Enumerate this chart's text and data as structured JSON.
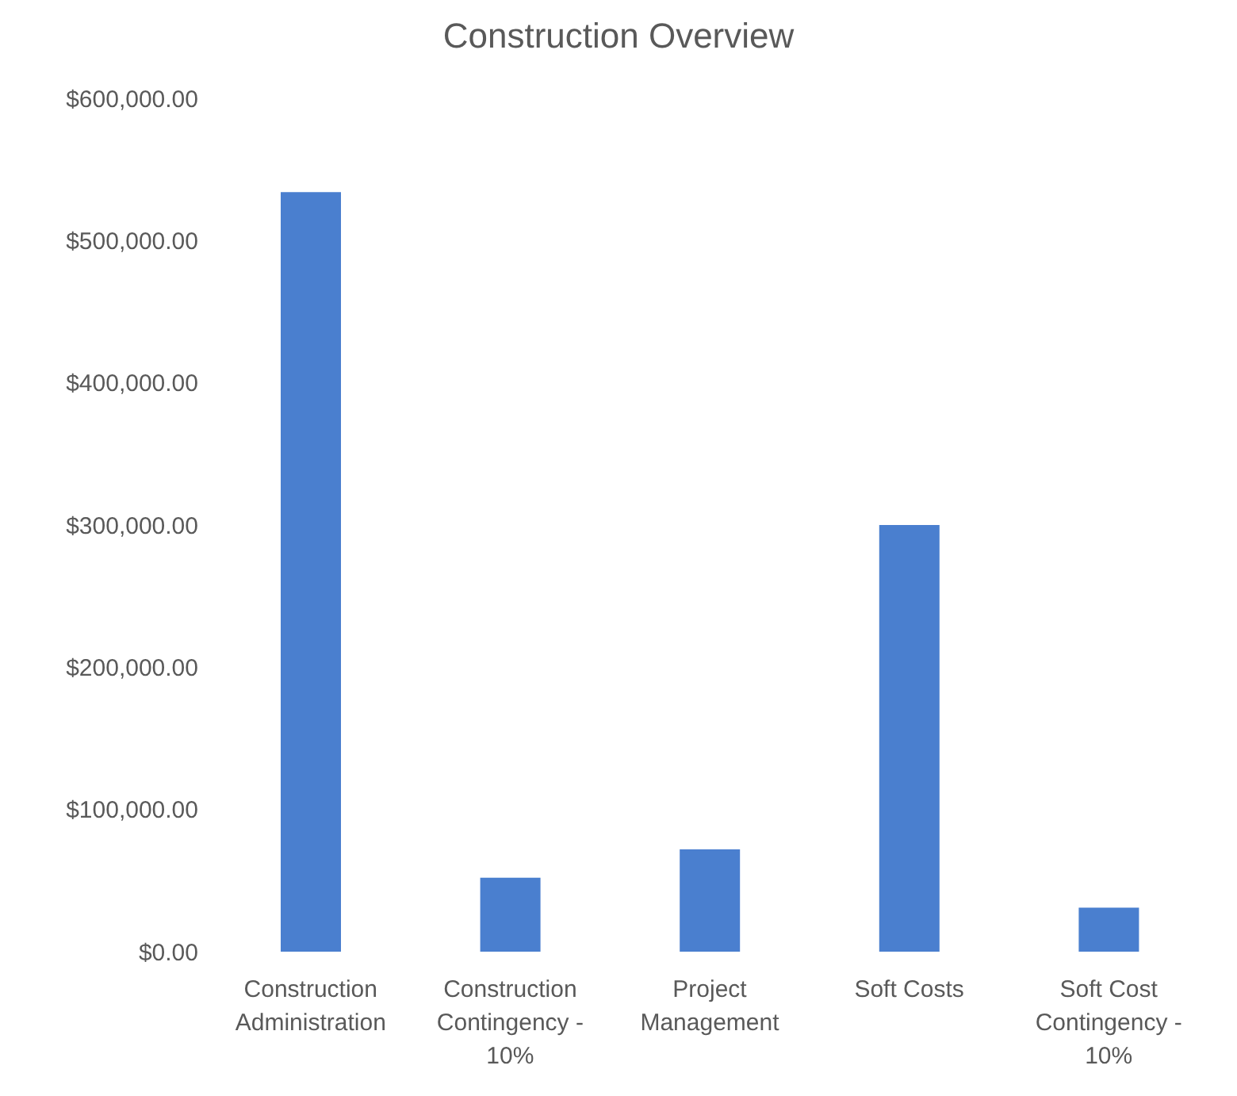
{
  "chart_data": {
    "type": "bar",
    "title": "Construction Overview",
    "categories": [
      "Construction Administration",
      "Construction Contingency - 10%",
      "Project Management",
      "Soft Costs",
      "Soft Cost Contingency - 10%"
    ],
    "values": [
      534000,
      52000,
      72000,
      300000,
      31000
    ],
    "color": "#4a7fcf",
    "ylim": [
      0,
      600000
    ],
    "yticks": [
      {
        "value": 0,
        "label": "$0.00"
      },
      {
        "value": 100000,
        "label": "$100,000.00"
      },
      {
        "value": 200000,
        "label": "$200,000.00"
      },
      {
        "value": 300000,
        "label": "$300,000.00"
      },
      {
        "value": 400000,
        "label": "$400,000.00"
      },
      {
        "value": 500000,
        "label": "$500,000.00"
      },
      {
        "value": 600000,
        "label": "$600,000.00"
      }
    ],
    "grid": false,
    "legend": false
  }
}
